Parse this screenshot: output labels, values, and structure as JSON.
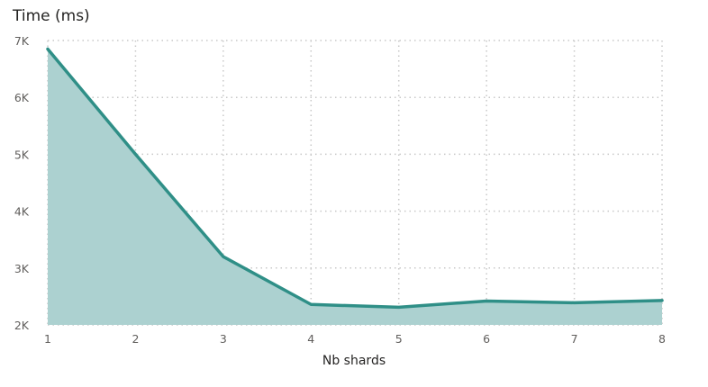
{
  "chart_data": {
    "type": "area",
    "title": "Time (ms)",
    "xlabel": "Nb shards",
    "ylabel": "",
    "x": [
      1,
      2,
      3,
      4,
      5,
      6,
      7,
      8
    ],
    "x_tick_labels": [
      "1",
      "2",
      "3",
      "4",
      "5",
      "6",
      "7",
      "8"
    ],
    "series": [
      {
        "values": [
          6850,
          5000,
          3200,
          2360,
          2310,
          2420,
          2390,
          2430
        ]
      }
    ],
    "ylim": [
      2000,
      7000
    ],
    "y_ticks": [
      2000,
      3000,
      4000,
      5000,
      6000,
      7000
    ],
    "y_tick_labels": [
      "2K",
      "3K",
      "4K",
      "5K",
      "6K",
      "7K"
    ],
    "grid": true,
    "legend": "none",
    "colors": {
      "line": "#2f8f87",
      "fill": "#acd1d0",
      "grid": "#c8c8c8",
      "text": "#252423",
      "tick_text": "#605e5c"
    }
  }
}
